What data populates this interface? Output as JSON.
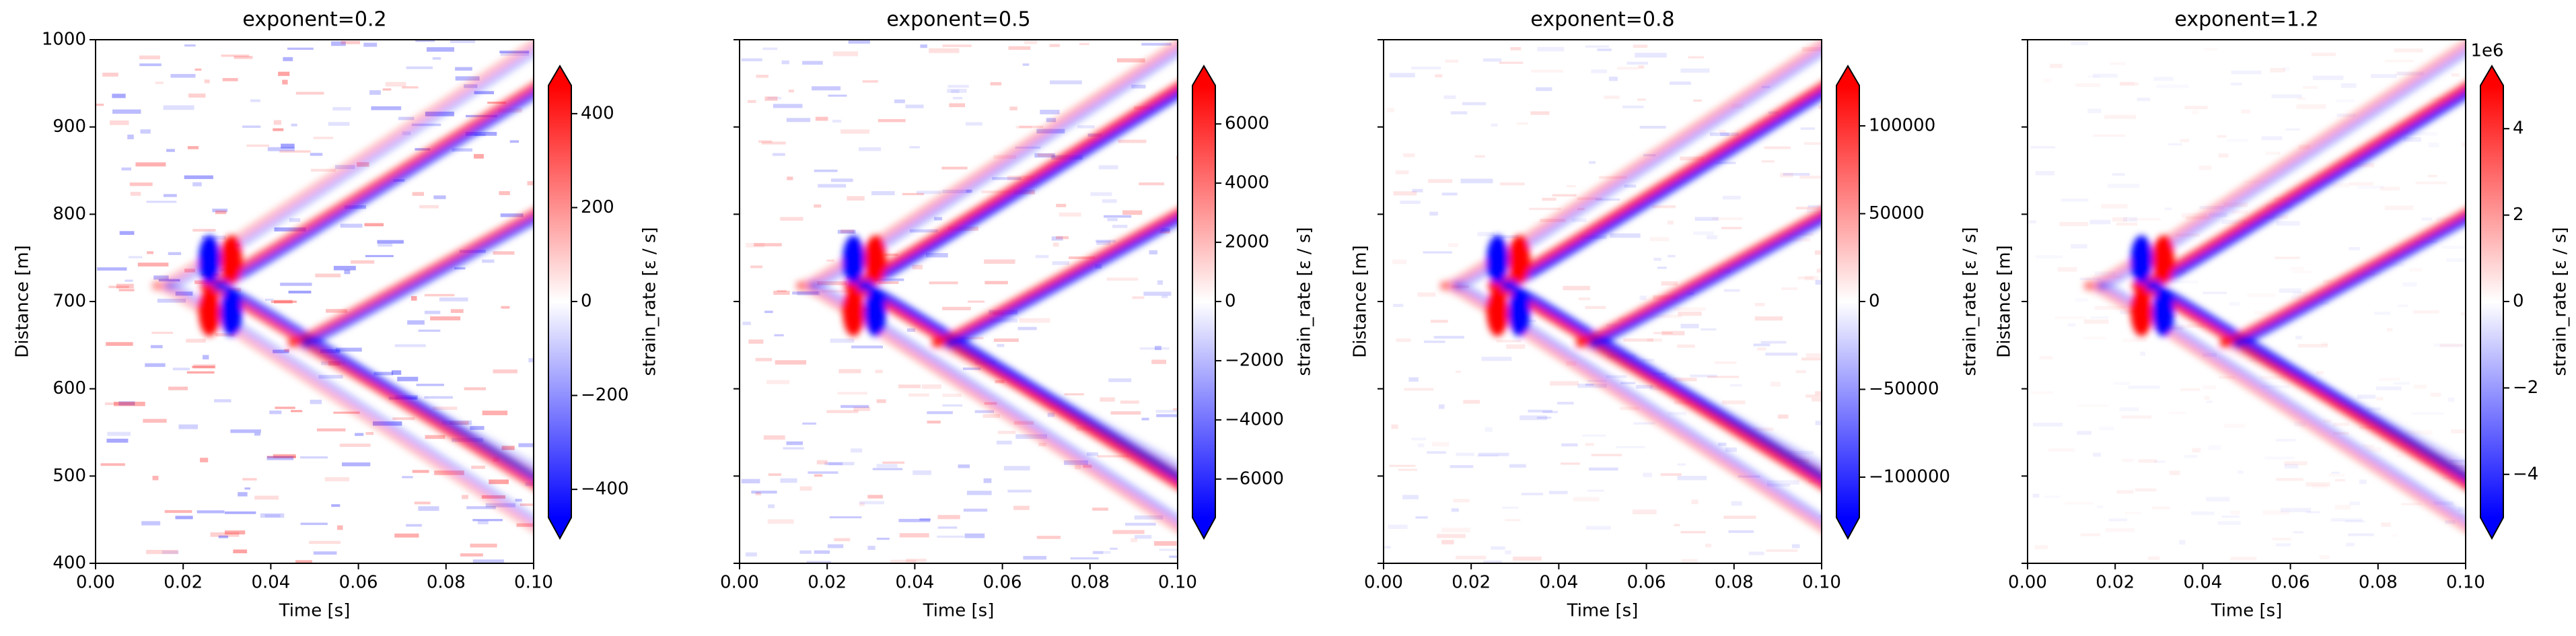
{
  "chart_data": [
    {
      "type": "heatmap",
      "title": "exponent=0.2",
      "xlabel": "Time [s]",
      "ylabel": "Distance [m]",
      "xlim": [
        0,
        0.1
      ],
      "ylim": [
        400,
        1000
      ],
      "xticks": [
        {
          "value": 0,
          "label": "0.00"
        },
        {
          "value": 0.02,
          "label": "0.02"
        },
        {
          "value": 0.04,
          "label": "0.04"
        },
        {
          "value": 0.06,
          "label": "0.06"
        },
        {
          "value": 0.08,
          "label": "0.08"
        },
        {
          "value": 0.1,
          "label": "0.10"
        }
      ],
      "yticks": [
        400,
        500,
        600,
        700,
        800,
        900,
        1000
      ],
      "ytick_labels": true,
      "colormap": "bwr",
      "colorbar_label": "strain_rate [ε / s]",
      "colorbar_extend": "both",
      "clim": [
        -460,
        460
      ],
      "colorbar_ticks": [
        {
          "value": -400,
          "label": "−400"
        },
        {
          "value": -200,
          "label": "−200"
        },
        0,
        200,
        400
      ]
    },
    {
      "type": "heatmap",
      "title": "exponent=0.5",
      "xlabel": "Time [s]",
      "xlim": [
        0,
        0.1
      ],
      "ylim": [
        400,
        1000
      ],
      "xticks": [
        {
          "value": 0,
          "label": "0.00"
        },
        {
          "value": 0.02,
          "label": "0.02"
        },
        {
          "value": 0.04,
          "label": "0.04"
        },
        {
          "value": 0.06,
          "label": "0.06"
        },
        {
          "value": 0.08,
          "label": "0.08"
        },
        {
          "value": 0.1,
          "label": "0.10"
        }
      ],
      "yticks": [
        400,
        500,
        600,
        700,
        800,
        900,
        1000
      ],
      "ytick_labels": false,
      "colormap": "bwr",
      "colorbar_label": "strain_rate [ε / s]",
      "colorbar_extend": "both",
      "clim": [
        -7300,
        7300
      ],
      "colorbar_ticks": [
        {
          "value": -6000,
          "label": "−6000"
        },
        {
          "value": -4000,
          "label": "−4000"
        },
        {
          "value": -2000,
          "label": "−2000"
        },
        0,
        2000,
        4000,
        6000
      ]
    },
    {
      "type": "heatmap",
      "title": "exponent=0.8",
      "xlabel": "Time [s]",
      "ylabel": "Distance [m]",
      "xlim": [
        0,
        0.1
      ],
      "ylim": [
        400,
        1000
      ],
      "xticks": [
        {
          "value": 0,
          "label": "0.00"
        },
        {
          "value": 0.02,
          "label": "0.02"
        },
        {
          "value": 0.04,
          "label": "0.04"
        },
        {
          "value": 0.06,
          "label": "0.06"
        },
        {
          "value": 0.08,
          "label": "0.08"
        },
        {
          "value": 0.1,
          "label": "0.10"
        }
      ],
      "yticks": [
        400,
        500,
        600,
        700,
        800,
        900,
        1000
      ],
      "ytick_labels": false,
      "colormap": "bwr",
      "colorbar_label": "strain_rate [ε / s]",
      "colorbar_extend": "both",
      "clim": [
        -123000,
        123000
      ],
      "colorbar_ticks": [
        {
          "value": -100000,
          "label": "−100000"
        },
        {
          "value": -50000,
          "label": "−50000"
        },
        0,
        50000,
        100000
      ]
    },
    {
      "type": "heatmap",
      "title": "exponent=1.2",
      "xlabel": "Time [s]",
      "ylabel": "Distance [m]",
      "xlim": [
        0,
        0.1
      ],
      "ylim": [
        400,
        1000
      ],
      "xticks": [
        {
          "value": 0,
          "label": "0.00"
        },
        {
          "value": 0.02,
          "label": "0.02"
        },
        {
          "value": 0.04,
          "label": "0.04"
        },
        {
          "value": 0.06,
          "label": "0.06"
        },
        {
          "value": 0.08,
          "label": "0.08"
        },
        {
          "value": 0.1,
          "label": "0.10"
        }
      ],
      "yticks": [
        400,
        500,
        600,
        700,
        800,
        900,
        1000
      ],
      "ytick_labels": false,
      "colormap": "bwr",
      "colorbar_label": "strain_rate [ε / s]",
      "colorbar_extend": "both",
      "clim": [
        -5000000,
        5000000
      ],
      "colorbar_offset_text": "1e6",
      "colorbar_ticks": [
        {
          "value": -4000000,
          "label": "−4"
        },
        {
          "value": -2000000,
          "label": "−2"
        },
        0,
        {
          "value": 2000000,
          "label": "2"
        },
        {
          "value": 4000000,
          "label": "4"
        }
      ]
    }
  ]
}
